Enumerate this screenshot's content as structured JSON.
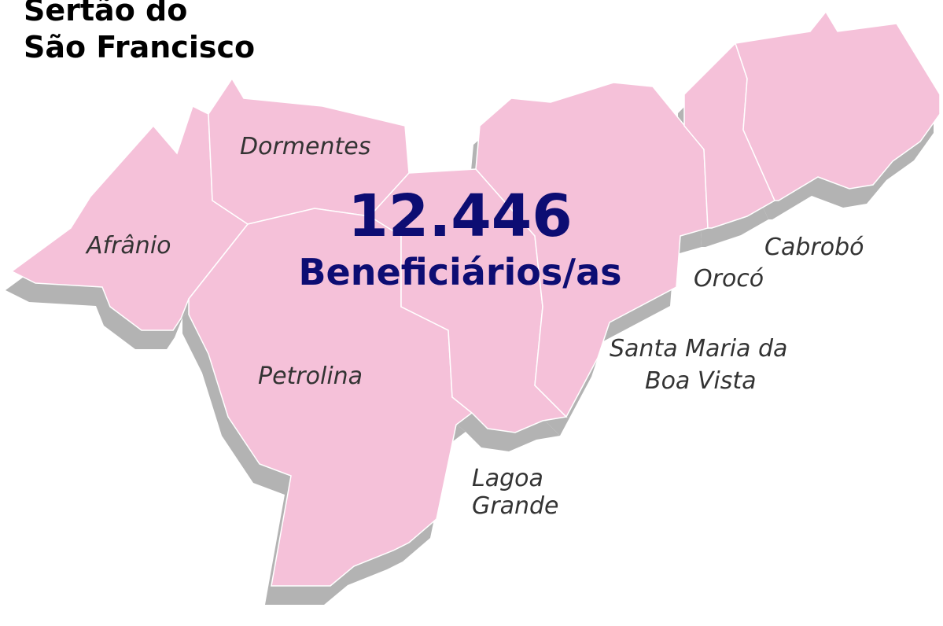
{
  "title": [
    "Sertão do",
    "São Francisco"
  ],
  "highlight": {
    "value": "12.446",
    "label": "Beneficiários/as"
  },
  "regions": [
    {
      "label": [
        "Dormentes"
      ]
    },
    {
      "label": [
        "Afrânio"
      ]
    },
    {
      "label": [
        "Petrolina"
      ]
    },
    {
      "label": [
        "Lagoa",
        "Grande"
      ]
    },
    {
      "label": [
        "Santa Maria da",
        "Boa Vista"
      ]
    },
    {
      "label": [
        "Orocó"
      ]
    },
    {
      "label": [
        "Cabrobó"
      ]
    }
  ]
}
